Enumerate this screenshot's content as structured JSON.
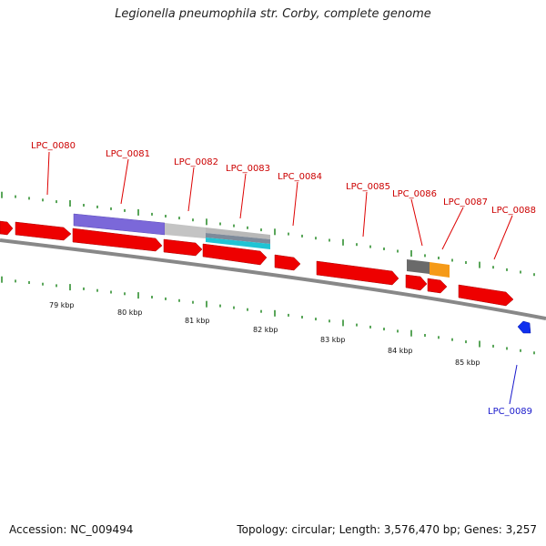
{
  "title": "Legionella pneumophila str. Corby, complete genome",
  "footer": {
    "accession": "Accession: NC_009494",
    "summary": "Topology: circular; Length: 3,576,470 bp; Genes: 3,257"
  },
  "colors": {
    "forward_gene": "#ee0000",
    "reverse_gene": "#1030ee",
    "backbone": "#888888",
    "tick": "#228822",
    "label_red": "#cc0000",
    "label_blue": "#1a1acc",
    "feature_purple": "#7b68d9",
    "feature_gray": "#c4c4c4",
    "feature_cyan": "#20c4d4",
    "feature_darkgray": "#6a6a6a",
    "feature_orange": "#f59a18"
  },
  "gene_labels": [
    {
      "id": "lbl-0080",
      "text": "LPC_0080",
      "strand": "forward"
    },
    {
      "id": "lbl-0081",
      "text": "LPC_0081",
      "strand": "forward"
    },
    {
      "id": "lbl-0082",
      "text": "LPC_0082",
      "strand": "forward"
    },
    {
      "id": "lbl-0083",
      "text": "LPC_0083",
      "strand": "forward"
    },
    {
      "id": "lbl-0084",
      "text": "LPC_0084",
      "strand": "forward"
    },
    {
      "id": "lbl-0085",
      "text": "LPC_0085",
      "strand": "forward"
    },
    {
      "id": "lbl-0086",
      "text": "LPC_0086",
      "strand": "forward"
    },
    {
      "id": "lbl-0087",
      "text": "LPC_0087",
      "strand": "forward"
    },
    {
      "id": "lbl-0088",
      "text": "LPC_0088",
      "strand": "forward"
    },
    {
      "id": "lbl-0089",
      "text": "LPC_0089",
      "strand": "reverse"
    }
  ],
  "scale_labels": [
    "79 kbp",
    "80 kbp",
    "81 kbp",
    "82 kbp",
    "83 kbp",
    "84 kbp",
    "85 kbp"
  ]
}
